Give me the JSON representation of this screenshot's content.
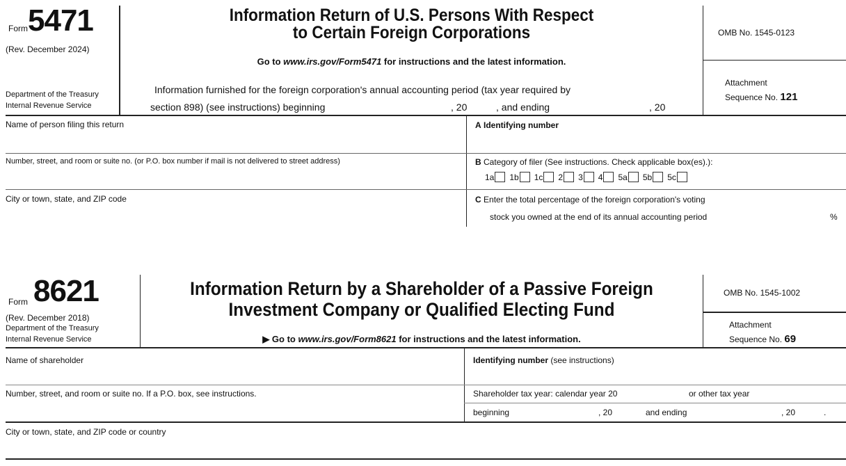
{
  "form5471": {
    "form_label": "Form",
    "form_number": "5471",
    "revision": "(Rev. December 2024)",
    "department": "Department of the Treasury",
    "agency": "Internal Revenue Service",
    "title_line1": "Information Return of U.S. Persons With Respect",
    "title_line2": "to Certain Foreign Corporations",
    "goto_prefix": "Go to ",
    "goto_url": "www.irs.gov/Form5471",
    "goto_suffix": " for instructions and the latest information.",
    "period_line1": "Information furnished for the foreign corporation's annual accounting period (tax year required by",
    "period_line2_a": "section 898) (see instructions) beginning",
    "period_line2_b": ", 20",
    "period_line2_c": ", and ending",
    "period_line2_d": ", 20",
    "omb": "OMB No. 1545-0123",
    "attachment": "Attachment",
    "sequence_label": "Sequence No.",
    "sequence_number": "121",
    "name_label": "Name of person filing this return",
    "address_label": "Number, street, and room or suite no. (or P.O. box number if mail is not delivered to street address)",
    "city_label": "City or town, state, and ZIP code",
    "a_letter": "A",
    "a_label": "Identifying number",
    "b_letter": "B",
    "b_label": "Category of filer (See instructions. Check applicable box(es).):",
    "categories": [
      "1a",
      "1b",
      "1c",
      "2",
      "3",
      "4",
      "5a",
      "5b",
      "5c"
    ],
    "c_letter": "C",
    "c_label_line1": "Enter the total percentage of the foreign corporation's voting",
    "c_label_line2": "stock you owned at the end of its annual accounting period",
    "percent_sign": "%"
  },
  "form8621": {
    "form_label": "Form",
    "form_number": "8621",
    "revision": "(Rev. December 2018)",
    "department": "Department of the Treasury",
    "agency": "Internal Revenue Service",
    "title_line1": "Information Return by a Shareholder of a Passive Foreign",
    "title_line2": "Investment Company or Qualified Electing Fund",
    "goto_arrow": "▶",
    "goto_prefix": " Go to ",
    "goto_url": "www.irs.gov/Form8621",
    "goto_suffix": " for instructions and the latest information.",
    "omb": "OMB No. 1545-1002",
    "attachment": "Attachment",
    "sequence_label": "Sequence No.",
    "sequence_number": "69",
    "name_label": "Name of shareholder",
    "id_label_bold": "Identifying number",
    "id_label_rest": " (see instructions)",
    "address_label": "Number, street, and room or suite no. If a P.O. box, see instructions.",
    "tax_year_a": "Shareholder tax year:  calendar year 20",
    "tax_year_b": "or other tax year",
    "beginning": "beginning",
    "comma20_a": ", 20",
    "and_ending": "and ending",
    "comma20_b": ", 20",
    "period": ".",
    "city_label": "City or town, state, and ZIP code or country"
  }
}
